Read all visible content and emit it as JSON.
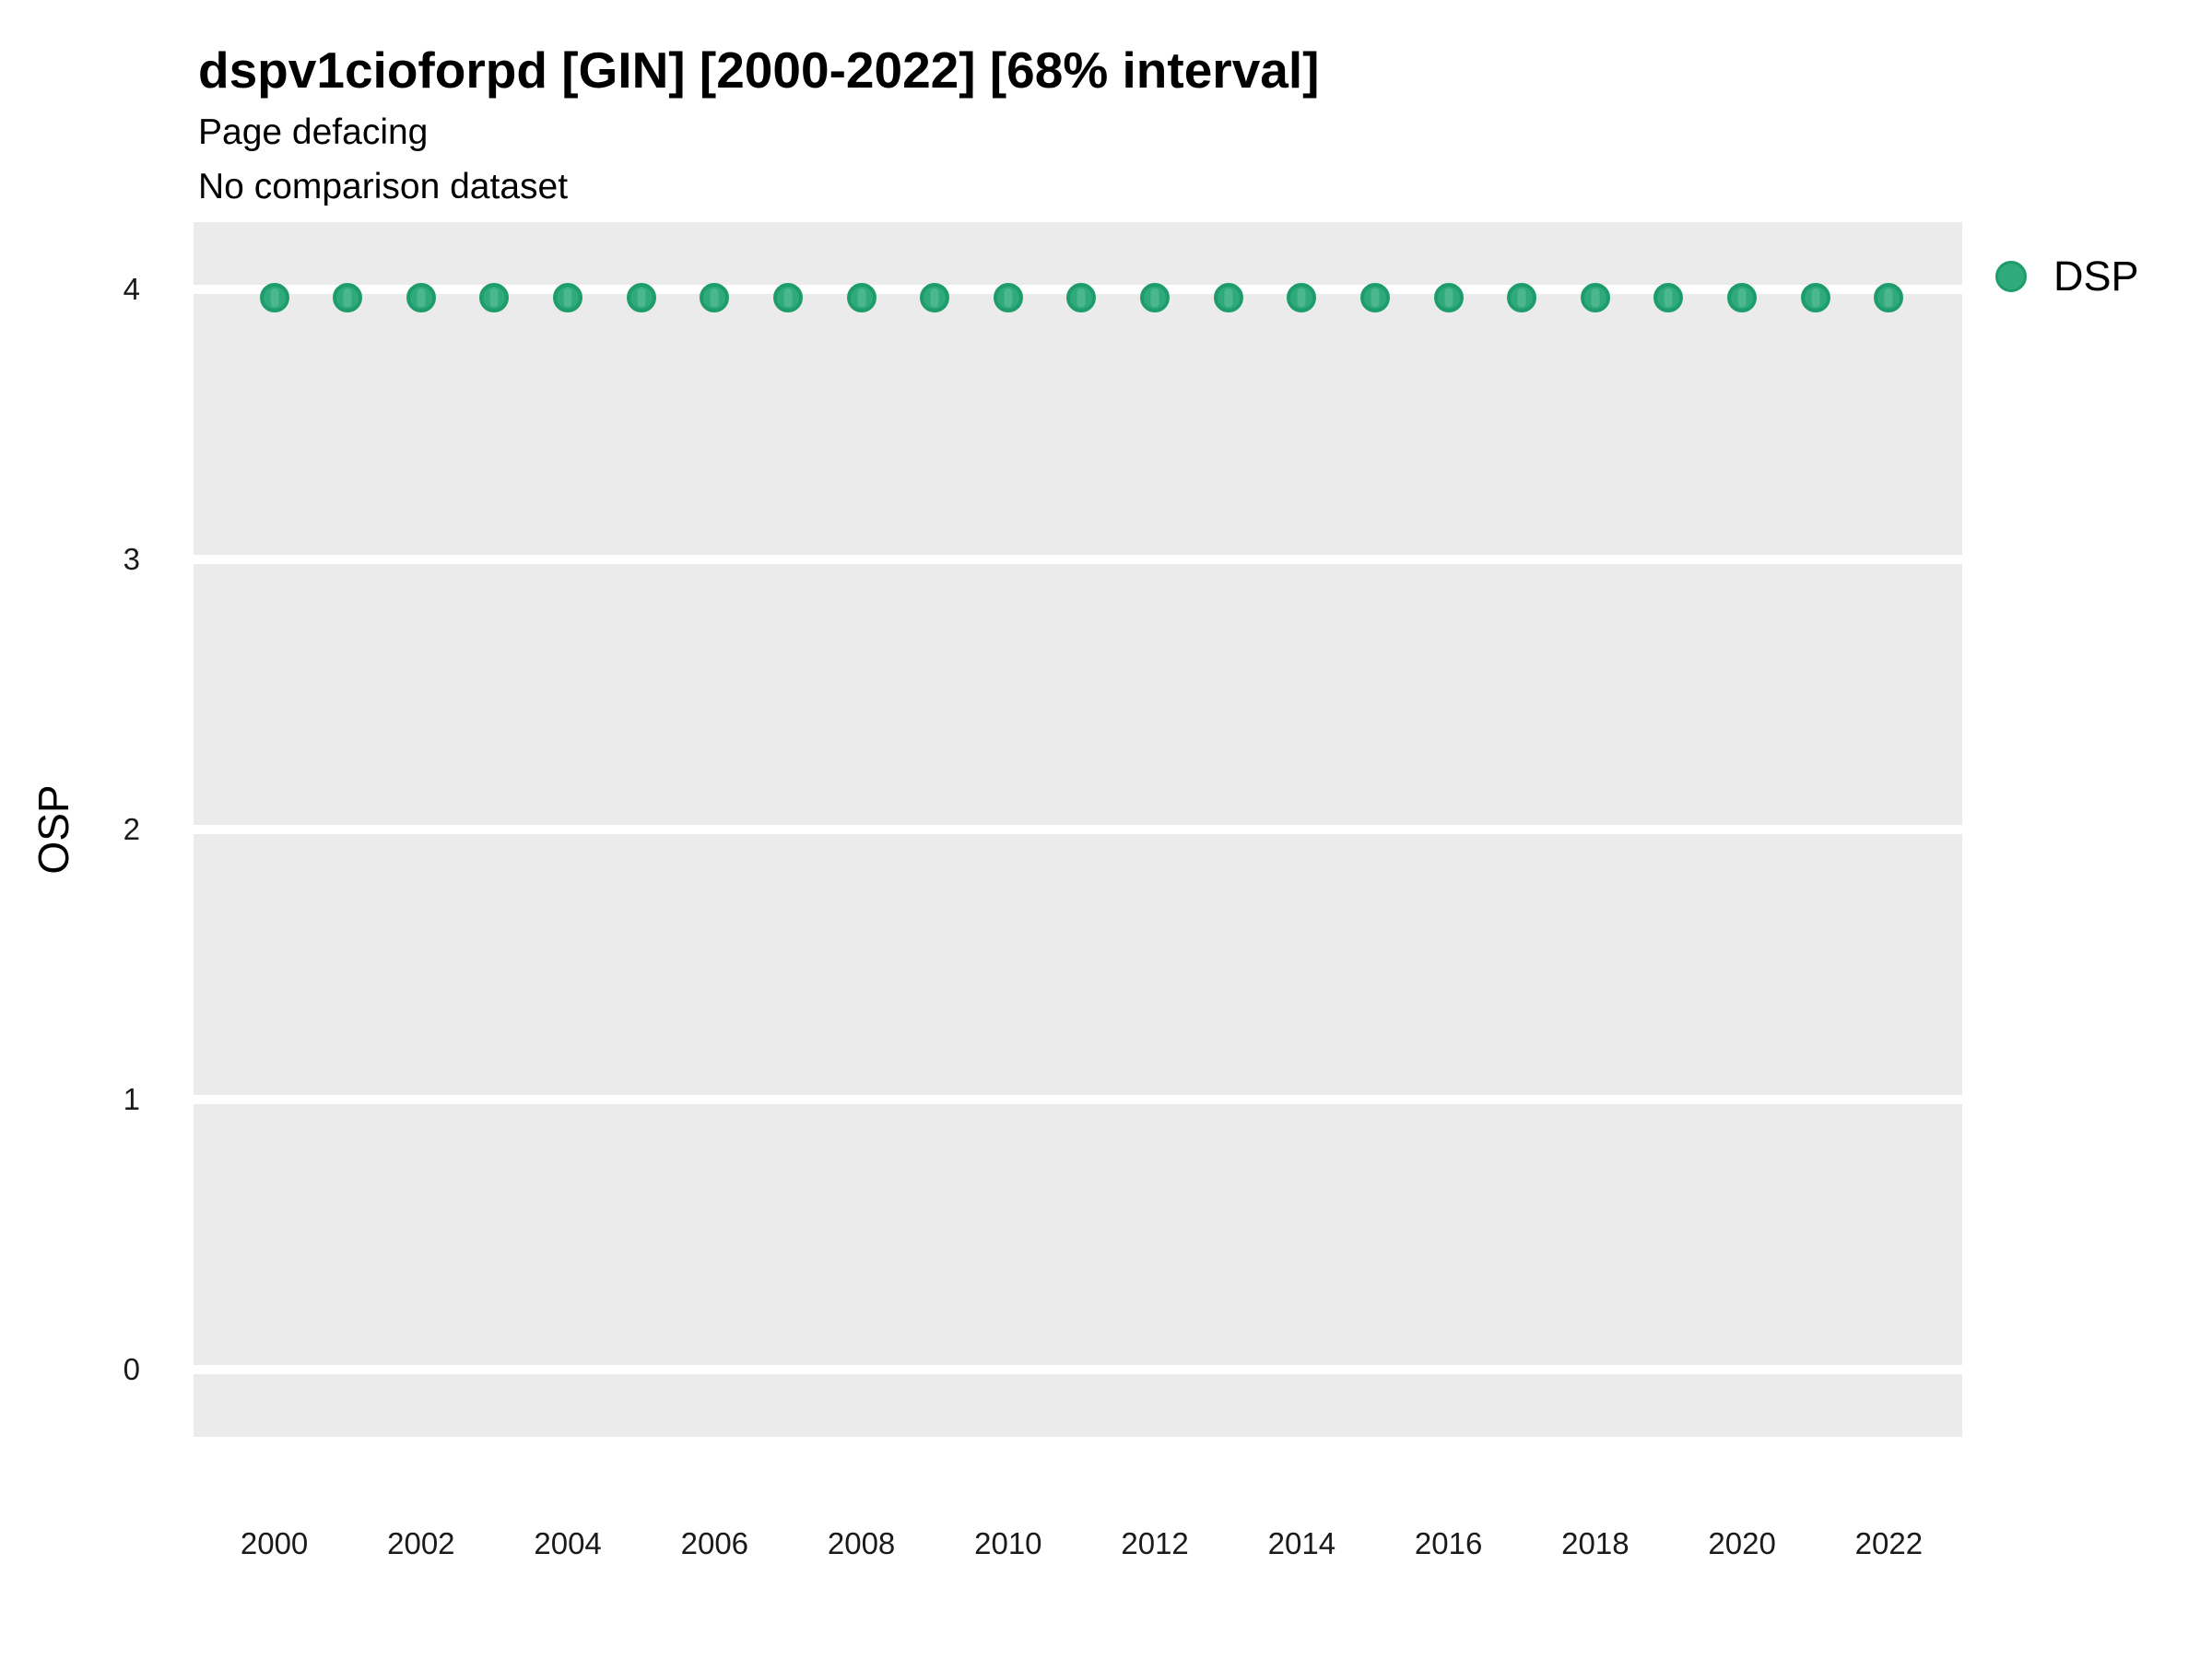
{
  "chart_data": {
    "type": "scatter",
    "title": "dspv1cioforpd [GIN] [2000-2022] [68% interval]",
    "subtitle": "Page defacing",
    "note": "No comparison dataset",
    "xlabel": "",
    "ylabel": "OSP",
    "legend_position": "right",
    "grid": {
      "major": true,
      "minor": false,
      "gridline_color": "#FFFFFF",
      "panel_background": "#EBEBEB"
    },
    "xlim": [
      1998.9,
      2023.0
    ],
    "ylim": [
      -0.25,
      4.25
    ],
    "x_ticks": [
      2000,
      2002,
      2004,
      2006,
      2008,
      2010,
      2012,
      2014,
      2016,
      2018,
      2020,
      2022
    ],
    "y_ticks": [
      4,
      3,
      2,
      1,
      0
    ],
    "series": [
      {
        "name": "DSP",
        "marker_color": "#2FAA7D",
        "marker_stroke": "#1E9C6C",
        "x": [
          2000,
          2001,
          2002,
          2003,
          2004,
          2005,
          2006,
          2007,
          2008,
          2009,
          2010,
          2011,
          2012,
          2013,
          2014,
          2015,
          2016,
          2017,
          2018,
          2019,
          2020,
          2021,
          2022
        ],
        "y": [
          3.97,
          3.97,
          3.97,
          3.97,
          3.97,
          3.97,
          3.97,
          3.97,
          3.97,
          3.97,
          3.97,
          3.97,
          3.97,
          3.97,
          3.97,
          3.97,
          3.97,
          3.97,
          3.97,
          3.97,
          3.97,
          3.97,
          3.97
        ]
      }
    ]
  }
}
